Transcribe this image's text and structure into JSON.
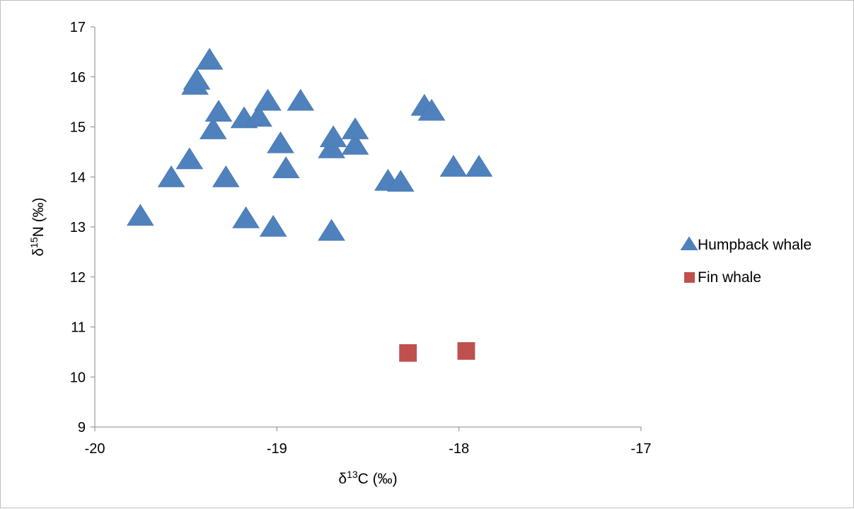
{
  "chart_data": {
    "type": "scatter",
    "xlabel": {
      "base": "δ",
      "sup": "13",
      "rest": "C (‰)"
    },
    "ylabel": {
      "base": "δ",
      "sup": "15",
      "rest": "N (‰)"
    },
    "xlim": [
      -20,
      -17
    ],
    "ylim": [
      9,
      17
    ],
    "xticks": [
      -20,
      -19,
      -18,
      -17
    ],
    "yticks": [
      9,
      10,
      11,
      12,
      13,
      14,
      15,
      16,
      17
    ],
    "grid": false,
    "legend_position": "right",
    "series": [
      {
        "name": "Humpback whale",
        "marker": "triangle",
        "color": "#4f81bd",
        "points": [
          [
            -19.75,
            13.2
          ],
          [
            -19.58,
            13.97
          ],
          [
            -19.48,
            14.33
          ],
          [
            -19.45,
            15.82
          ],
          [
            -19.44,
            15.92
          ],
          [
            -19.37,
            16.32
          ],
          [
            -19.35,
            14.93
          ],
          [
            -19.32,
            15.28
          ],
          [
            -19.28,
            13.97
          ],
          [
            -19.18,
            15.15
          ],
          [
            -19.17,
            13.15
          ],
          [
            -19.1,
            15.18
          ],
          [
            -19.05,
            15.5
          ],
          [
            -19.02,
            12.98
          ],
          [
            -18.98,
            14.65
          ],
          [
            -18.95,
            14.15
          ],
          [
            -18.87,
            15.5
          ],
          [
            -18.7,
            14.55
          ],
          [
            -18.7,
            12.9
          ],
          [
            -18.69,
            14.77
          ],
          [
            -18.57,
            14.62
          ],
          [
            -18.57,
            14.93
          ],
          [
            -18.39,
            13.9
          ],
          [
            -18.32,
            13.88
          ],
          [
            -18.19,
            15.4
          ],
          [
            -18.15,
            15.3
          ],
          [
            -18.03,
            14.18
          ],
          [
            -17.89,
            14.18
          ]
        ]
      },
      {
        "name": "Fin whale",
        "marker": "square",
        "color": "#c0504d",
        "points": [
          [
            -18.28,
            10.48
          ],
          [
            -17.96,
            10.52
          ]
        ]
      }
    ]
  }
}
